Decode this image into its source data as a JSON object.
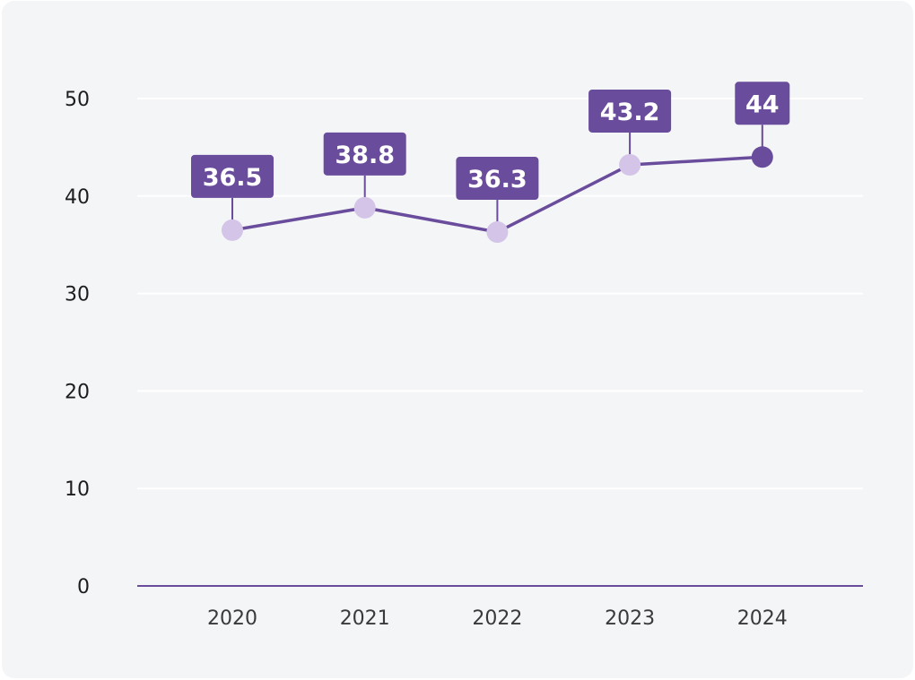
{
  "chart_data": {
    "type": "line",
    "title": "",
    "xlabel": "",
    "ylabel": "",
    "categories": [
      "2020",
      "2021",
      "2022",
      "2023",
      "2024"
    ],
    "series": [
      {
        "values": [
          36.5,
          38.8,
          36.3,
          43.2,
          44
        ],
        "labels": [
          "36.5",
          "38.8",
          "36.3",
          "43.2",
          "44"
        ]
      }
    ],
    "ylim": [
      0,
      50
    ],
    "yticks": [
      "0",
      "10",
      "20",
      "30",
      "40",
      "50"
    ],
    "grid": true,
    "legend": "none",
    "colors": {
      "line": "#6a4c9c",
      "label_bg": "#6a4c9c",
      "point": "#d3c4e8",
      "point_last": "#6a4c9c",
      "grid": "#ffffff",
      "axis": "#6a4c9c"
    }
  }
}
